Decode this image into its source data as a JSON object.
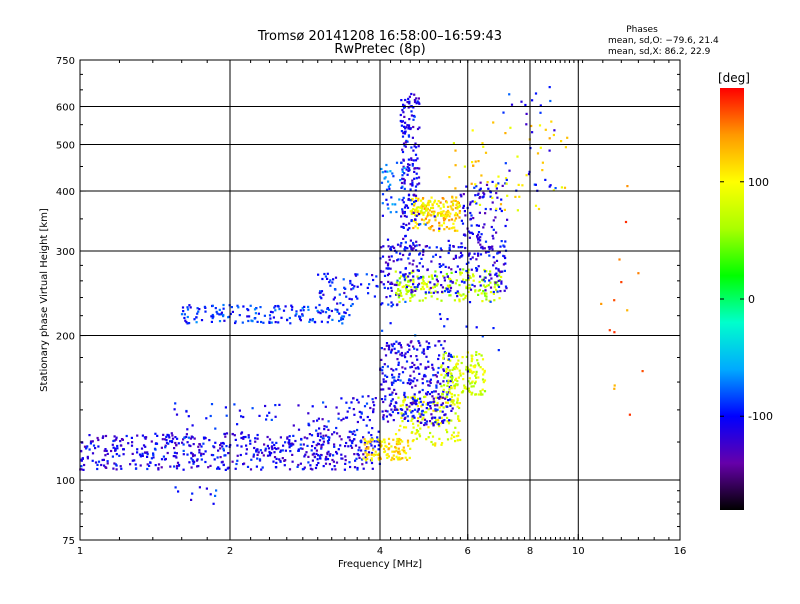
{
  "chart_data": {
    "type": "scatter",
    "title": "Tromsø 20141208 16:58:00–16:59:43",
    "subtitle": "RwPretec (8p)",
    "xlabel": "Frequency [MHz]",
    "ylabel": "Stationary phase Virtual Height [km]",
    "x_scale": "log",
    "y_scale": "log",
    "xlim": [
      1,
      16
    ],
    "ylim": [
      75,
      750
    ],
    "x_ticks": [
      1,
      2,
      4,
      6,
      8,
      10,
      16
    ],
    "y_ticks": [
      75,
      100,
      200,
      300,
      400,
      500,
      600,
      750
    ],
    "x_gridlines": [
      2,
      4,
      6,
      8,
      10
    ],
    "y_gridlines": [
      100,
      200,
      300,
      400,
      500,
      600
    ],
    "grid": true,
    "phase_info": {
      "title": "Phases",
      "line_o": "mean, sd,O: −79.6, 21.4",
      "line_x": "mean, sd,X:  86.2, 22.9"
    },
    "colorbar": {
      "label": "[deg]",
      "range": [
        -180,
        180
      ],
      "ticks": [
        100,
        0,
        -100
      ],
      "colors": [
        "#000000",
        "#6600aa",
        "#0000ff",
        "#00aaff",
        "#00ffcc",
        "#00ff00",
        "#aaff00",
        "#ffff00",
        "#ff9900",
        "#ff0000"
      ]
    },
    "series": [
      {
        "fmin": 1.0,
        "fmax": 4.0,
        "hmin": 105,
        "hmax": 125,
        "phase": -110,
        "count": 520
      },
      {
        "fmin": 1.5,
        "fmax": 3.0,
        "hmin": 115,
        "hmax": 145,
        "phase": -100,
        "count": 70
      },
      {
        "fmin": 3.0,
        "fmax": 4.0,
        "hmin": 120,
        "hmax": 150,
        "phase": -105,
        "count": 70
      },
      {
        "fmin": 3.7,
        "fmax": 4.6,
        "hmin": 110,
        "hmax": 122,
        "phase": 110,
        "count": 110
      },
      {
        "fmin": 4.3,
        "fmax": 5.8,
        "hmin": 118,
        "hmax": 150,
        "phase": 90,
        "count": 150
      },
      {
        "fmin": 4.0,
        "fmax": 5.6,
        "hmin": 130,
        "hmax": 195,
        "phase": -110,
        "count": 330
      },
      {
        "fmin": 5.3,
        "fmax": 6.5,
        "hmin": 150,
        "hmax": 185,
        "phase": 80,
        "count": 140
      },
      {
        "fmin": 1.6,
        "fmax": 3.5,
        "hmin": 212,
        "hmax": 232,
        "phase": -90,
        "count": 160
      },
      {
        "fmin": 3.0,
        "fmax": 4.5,
        "hmin": 230,
        "hmax": 270,
        "phase": -100,
        "count": 80
      },
      {
        "fmin": 4.3,
        "fmax": 7.0,
        "hmin": 235,
        "hmax": 275,
        "phase": 70,
        "count": 180
      },
      {
        "fmin": 4.0,
        "fmax": 7.2,
        "hmin": 245,
        "hmax": 310,
        "phase": -110,
        "count": 220
      },
      {
        "fmin": 4.6,
        "fmax": 5.8,
        "hmin": 330,
        "hmax": 390,
        "phase": 120,
        "count": 130
      },
      {
        "fmin": 4.6,
        "fmax": 5.8,
        "hmin": 355,
        "hmax": 385,
        "phase": 100,
        "count": 60
      },
      {
        "fmin": 5.8,
        "fmax": 7.2,
        "hmin": 290,
        "hmax": 420,
        "phase": -110,
        "count": 120
      },
      {
        "fmin": 4.4,
        "fmax": 4.8,
        "hmin": 300,
        "hmax": 640,
        "phase": -110,
        "count": 180
      },
      {
        "fmin": 4.0,
        "fmax": 4.5,
        "hmin": 360,
        "hmax": 460,
        "phase": -80,
        "count": 40
      },
      {
        "fmin": 5.5,
        "fmax": 9.5,
        "hmin": 360,
        "hmax": 560,
        "phase": 110,
        "count": 60
      },
      {
        "fmin": 7.0,
        "fmax": 9.0,
        "hmin": 400,
        "hmax": 660,
        "phase": -100,
        "count": 30
      },
      {
        "fmin": 11.0,
        "fmax": 13.5,
        "hmin": 130,
        "hmax": 440,
        "phase": 150,
        "count": 14
      },
      {
        "fmin": 1.5,
        "fmax": 1.9,
        "hmin": 88,
        "hmax": 98,
        "phase": -100,
        "count": 10
      },
      {
        "fmin": 4.0,
        "fmax": 7.0,
        "hmin": 160,
        "hmax": 360,
        "phase": -95,
        "count": 40
      }
    ]
  }
}
